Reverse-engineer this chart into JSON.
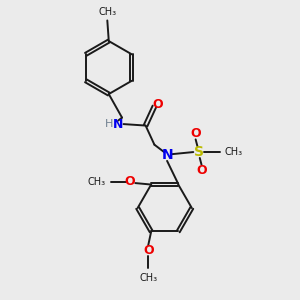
{
  "bg_color": "#ebebeb",
  "bond_color": "#1a1a1a",
  "N_color": "#0000ee",
  "O_color": "#ee0000",
  "S_color": "#bbbb00",
  "H_color": "#708090",
  "figsize": [
    3.0,
    3.0
  ],
  "dpi": 100,
  "xlim": [
    0,
    10
  ],
  "ylim": [
    0,
    10
  ]
}
